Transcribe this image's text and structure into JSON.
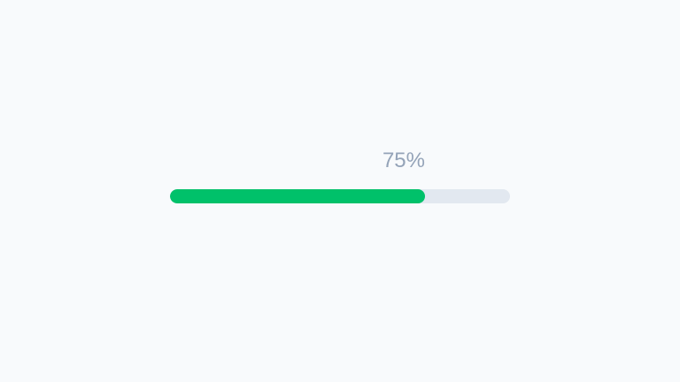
{
  "progress": {
    "value_percent": 75,
    "label": "75%",
    "fill_color": "#00c16a",
    "track_color": "#e2e8f0",
    "label_color": "#94a3b8"
  }
}
